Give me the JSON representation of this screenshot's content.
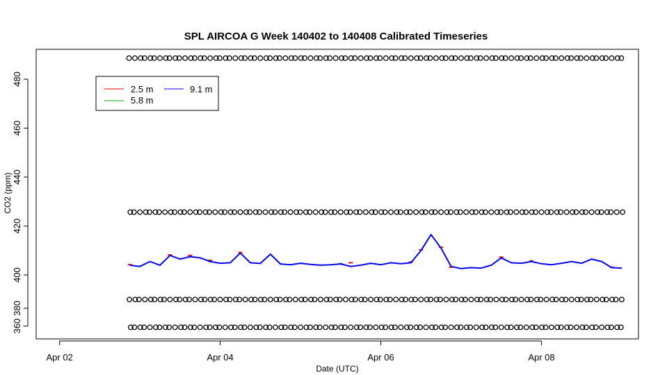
{
  "chart_data": {
    "type": "line",
    "title": "SPL AIRCOA G  Week 140402 to 140408  Calibrated Timeseries",
    "xlabel": "Date (UTC)",
    "ylabel": "CO2 (ppm)",
    "xlim": [
      "2014-04-01T17:00",
      "2014-04-09T05:00"
    ],
    "ylim_plotted": [
      356,
      490
    ],
    "axis_break_note": "y axis ticks 360 and 380 sit on a compressed lower segment (range ~353-392 mapped compactly)",
    "x_ticks": [
      "Apr 02",
      "Apr 04",
      "Apr 06",
      "Apr 08"
    ],
    "y_ticks": [
      "360",
      "380",
      "400",
      "420",
      "440",
      "460",
      "480"
    ],
    "legend": {
      "placement": "top-left",
      "entries": [
        {
          "name": "2.5 m",
          "color": "#ff0000"
        },
        {
          "name": "5.8 m",
          "color": "#00aa00"
        },
        {
          "name": "9.1 m",
          "color": "#0000ff"
        }
      ]
    },
    "calibration_markers": {
      "shape": "open-circle",
      "levels": [
        488.6,
        425.7,
        390.0,
        358.6
      ],
      "x_start": "2014-04-02T21:00",
      "x_end": "2014-04-09T00:00",
      "step_hours": 1.5
    },
    "series": [
      {
        "name": "9.1 m",
        "color": "#0000ff",
        "x": [
          "2014-04-02T21:00",
          "2014-04-03T00:00",
          "2014-04-03T03:00",
          "2014-04-03T06:00",
          "2014-04-03T09:00",
          "2014-04-03T12:00",
          "2014-04-03T15:00",
          "2014-04-03T18:00",
          "2014-04-03T21:00",
          "2014-04-04T00:00",
          "2014-04-04T03:00",
          "2014-04-04T06:00",
          "2014-04-04T09:00",
          "2014-04-04T12:00",
          "2014-04-04T15:00",
          "2014-04-04T18:00",
          "2014-04-04T21:00",
          "2014-04-05T00:00",
          "2014-04-05T03:00",
          "2014-04-05T06:00",
          "2014-04-05T09:00",
          "2014-04-05T12:00",
          "2014-04-05T15:00",
          "2014-04-05T18:00",
          "2014-04-05T21:00",
          "2014-04-06T00:00",
          "2014-04-06T03:00",
          "2014-04-06T06:00",
          "2014-04-06T09:00",
          "2014-04-06T12:00",
          "2014-04-06T15:00",
          "2014-04-06T18:00",
          "2014-04-06T21:00",
          "2014-04-07T00:00",
          "2014-04-07T03:00",
          "2014-04-07T06:00",
          "2014-04-07T09:00",
          "2014-04-07T12:00",
          "2014-04-07T15:00",
          "2014-04-07T18:00",
          "2014-04-07T21:00",
          "2014-04-08T00:00",
          "2014-04-08T03:00",
          "2014-04-08T06:00",
          "2014-04-08T09:00",
          "2014-04-08T12:00",
          "2014-04-08T15:00",
          "2014-04-08T18:00",
          "2014-04-08T21:00",
          "2014-04-09T00:00"
        ],
        "values": [
          404.0,
          403.5,
          405.5,
          404.0,
          408.0,
          406.5,
          407.5,
          407.0,
          405.5,
          404.8,
          405.0,
          409.0,
          405.0,
          404.7,
          408.5,
          404.5,
          404.2,
          404.8,
          404.3,
          404.0,
          404.2,
          404.5,
          403.5,
          404.0,
          404.8,
          404.2,
          405.0,
          404.6,
          405.0,
          410.0,
          416.5,
          411.0,
          403.5,
          402.6,
          403.0,
          402.8,
          404.0,
          407.0,
          405.0,
          404.8,
          405.5,
          404.6,
          404.2,
          404.8,
          405.5,
          404.8,
          406.5,
          405.5,
          403.0,
          402.8
        ]
      },
      {
        "name": "2.5 m",
        "color": "#ff0000",
        "x": [
          "2014-04-02T21:00",
          "2014-04-03T09:00",
          "2014-04-03T15:00",
          "2014-04-03T21:00",
          "2014-04-04T06:00",
          "2014-04-05T12:00",
          "2014-04-05T15:00",
          "2014-04-06T09:00",
          "2014-04-06T12:00",
          "2014-04-06T18:00",
          "2014-04-06T21:00",
          "2014-04-07T12:00",
          "2014-04-07T21:00",
          "2014-04-08T21:00"
        ],
        "values": [
          404.2,
          408.2,
          408.0,
          406.0,
          409.2,
          404.6,
          405.0,
          405.3,
          410.3,
          411.3,
          403.2,
          407.3,
          405.8,
          403.2
        ]
      },
      {
        "name": "5.8 m",
        "color": "#00aa00",
        "x": [
          "2014-04-03T21:00",
          "2014-04-05T12:00",
          "2014-04-07T21:00"
        ],
        "values": [
          405.6,
          404.5,
          405.6
        ]
      }
    ]
  }
}
